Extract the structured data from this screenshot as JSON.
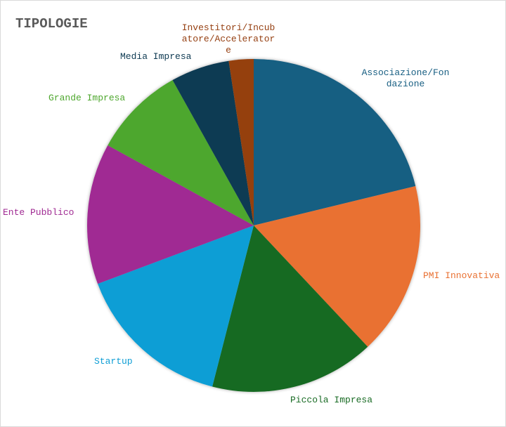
{
  "chart_data": {
    "type": "pie",
    "title": "TIPOLOGIE",
    "legend": "none (labels outside slices)",
    "slices": [
      {
        "label": "Associazione/Fondazione",
        "value": 21.2,
        "color": "#175E82"
      },
      {
        "label": "PMI Innovativa",
        "value": 16.8,
        "color": "#E97132"
      },
      {
        "label": "Piccola Impresa",
        "value": 16.0,
        "color": "#196B24"
      },
      {
        "label": "Startup",
        "value": 15.3,
        "color": "#0F9ED5"
      },
      {
        "label": "Ente Pubblico",
        "value": 13.7,
        "color": "#A02B93"
      },
      {
        "label": "Grande Impresa",
        "value": 8.9,
        "color": "#4EA72E"
      },
      {
        "label": "Media Impresa",
        "value": 5.7,
        "color": "#0E3A52"
      },
      {
        "label": "Investitori/Incubatore/Acceleratore",
        "value": 2.4,
        "color": "#953F11"
      }
    ]
  }
}
